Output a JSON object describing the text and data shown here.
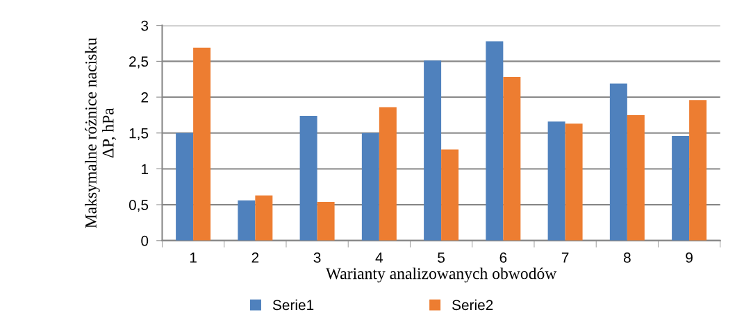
{
  "chart_data": {
    "type": "bar",
    "xlabel": "Warianty analizowanych obwodów",
    "ylabel": "Maksymalne różnice nacisku\nΔP, hPa",
    "categories": [
      "1",
      "2",
      "3",
      "4",
      "5",
      "6",
      "7",
      "8",
      "9"
    ],
    "series": [
      {
        "name": "Serie1",
        "color": "#4f81bd",
        "values": [
          1.5,
          0.56,
          1.74,
          1.5,
          2.51,
          2.78,
          1.66,
          2.19,
          1.46
        ]
      },
      {
        "name": "Serie2",
        "color": "#ed7d31",
        "values": [
          2.69,
          0.63,
          0.54,
          1.86,
          1.27,
          2.28,
          1.63,
          1.75,
          1.96
        ]
      }
    ],
    "ylim": [
      0,
      3
    ],
    "yticks": [
      0,
      {
        "value": 0.5,
        "label": "0,5"
      },
      1,
      {
        "value": 1.5,
        "label": "1,5"
      },
      2,
      {
        "value": 2.5,
        "label": "2,5"
      },
      3
    ],
    "grid": "y",
    "legend": "bottom"
  }
}
